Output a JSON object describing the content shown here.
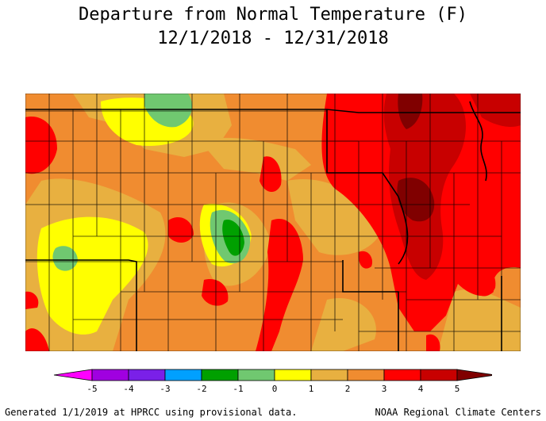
{
  "title": {
    "line1": "Departure from Normal Temperature (F)",
    "line2": "12/1/2018 - 12/31/2018"
  },
  "legend": {
    "ticks": [
      "-5",
      "-4",
      "-3",
      "-2",
      "-1",
      "0",
      "1",
      "2",
      "3",
      "4",
      "5"
    ],
    "bins": [
      {
        "range": "< -5",
        "color": "#ff00ff"
      },
      {
        "range": "-5 to -4",
        "color": "#a000e0"
      },
      {
        "range": "-4 to -3",
        "color": "#7a20e8"
      },
      {
        "range": "-3 to -2",
        "color": "#00a0ff"
      },
      {
        "range": "-2 to -1",
        "color": "#00a000"
      },
      {
        "range": "-1 to 0",
        "color": "#70c870"
      },
      {
        "range": "0 to 1",
        "color": "#ffff00"
      },
      {
        "range": "1 to 2",
        "color": "#e8b040"
      },
      {
        "range": "2 to 3",
        "color": "#f08c30"
      },
      {
        "range": "3 to 4",
        "color": "#ff0000"
      },
      {
        "range": "4 to 5",
        "color": "#c80000"
      },
      {
        "range": "> 5",
        "color": "#800000"
      }
    ]
  },
  "footer": {
    "left": "Generated 1/1/2019 at HPRCC using provisional data.",
    "right": "NOAA Regional Climate Centers"
  },
  "colors": {
    "background_field": "#f08c30",
    "county_lines": "#000000"
  }
}
